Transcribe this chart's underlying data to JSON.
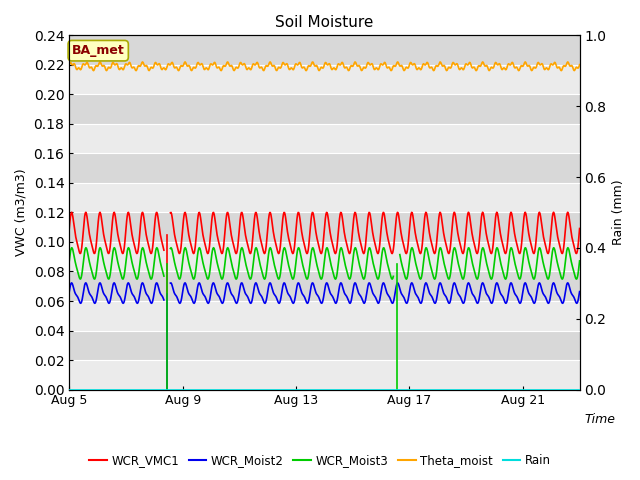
{
  "title": "Soil Moisture",
  "xlabel": "Time",
  "ylabel_left": "VWC (m3/m3)",
  "ylabel_right": "Rain (mm)",
  "ylim_left": [
    0.0,
    0.24
  ],
  "ylim_right": [
    0.0,
    1.0
  ],
  "yticks_left": [
    0.0,
    0.02,
    0.04,
    0.06,
    0.08,
    0.1,
    0.12,
    0.14,
    0.16,
    0.18,
    0.2,
    0.22,
    0.24
  ],
  "yticks_right": [
    0.0,
    0.2,
    0.4,
    0.6,
    0.8,
    1.0
  ],
  "xtick_labels": [
    "Aug 5",
    "Aug 9",
    "Aug 13",
    "Aug 17",
    "Aug 21"
  ],
  "xtick_positions": [
    0,
    4,
    8,
    12,
    16
  ],
  "xlim": [
    0,
    18
  ],
  "annotation_text": "BA_met",
  "annotation_color": "#8B0000",
  "annotation_bg": "#FFFFC0",
  "annotation_edge": "#AAAA00",
  "colors": {
    "WCR_VMC1": "#FF0000",
    "WCR_Moist2": "#0000EE",
    "WCR_Moist3": "#00CC00",
    "Theta_moist": "#FFA500",
    "Rain": "#00DDDD"
  },
  "bg_light": "#EBEBEB",
  "bg_dark": "#D8D8D8",
  "grid_color": "#FFFFFF",
  "figsize": [
    6.4,
    4.8
  ],
  "dpi": 100
}
